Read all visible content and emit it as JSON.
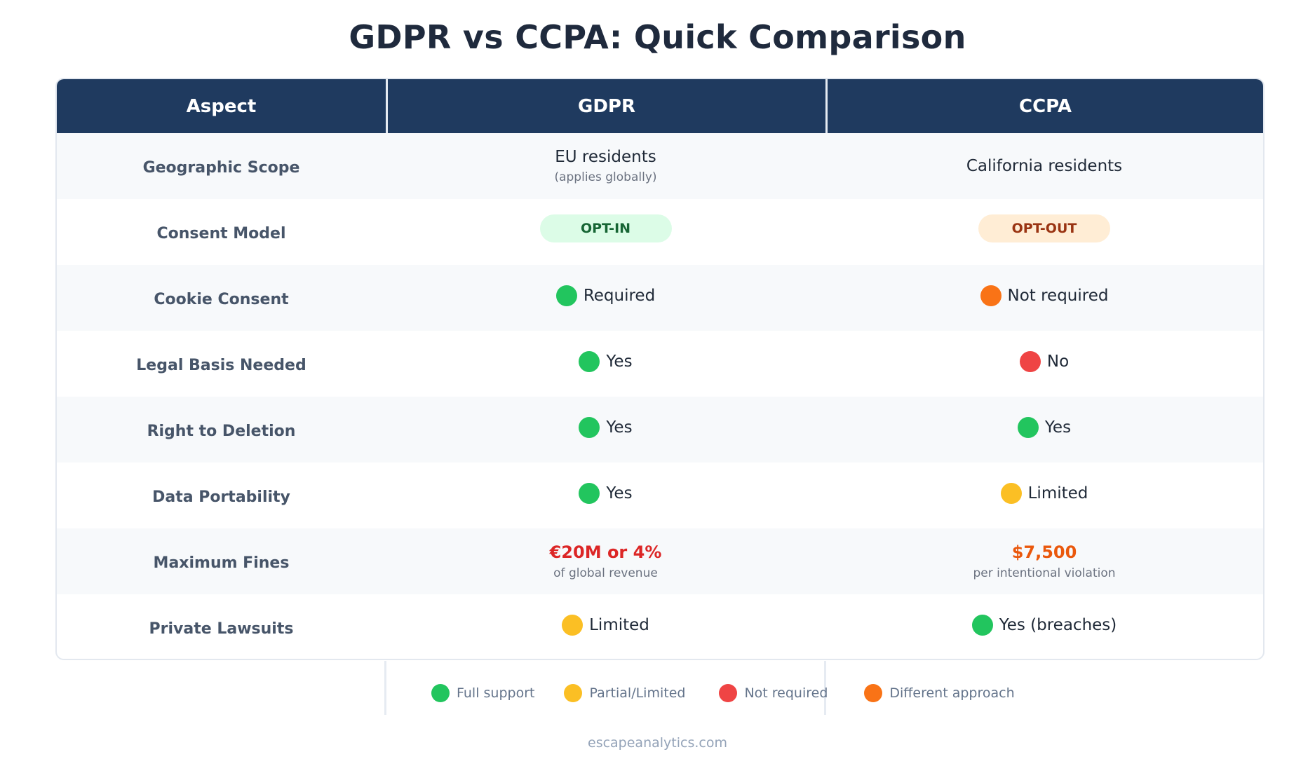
{
  "title": "GDPR vs CCPA: Quick Comparison",
  "colors": {
    "header_bg": "#1f3a5f",
    "green": "#22c55e",
    "yellow": "#fbbf24",
    "red": "#ef4444",
    "orange": "#f97316"
  },
  "headers": [
    "Aspect",
    "GDPR",
    "CCPA"
  ],
  "rows": [
    {
      "aspect": "Geographic Scope",
      "gdpr": {
        "text": "EU residents",
        "sub": "(applies globally)"
      },
      "ccpa": {
        "text": "California residents"
      }
    },
    {
      "aspect": "Consent Model",
      "gdpr": {
        "badge": "OPT-IN"
      },
      "ccpa": {
        "badge": "OPT-OUT"
      }
    },
    {
      "aspect": "Cookie Consent",
      "gdpr": {
        "status": "green",
        "text": "Required"
      },
      "ccpa": {
        "status": "orange",
        "text": "Not required"
      }
    },
    {
      "aspect": "Legal Basis Needed",
      "gdpr": {
        "status": "green",
        "text": "Yes"
      },
      "ccpa": {
        "status": "red",
        "text": "No"
      }
    },
    {
      "aspect": "Right to Deletion",
      "gdpr": {
        "status": "green",
        "text": "Yes"
      },
      "ccpa": {
        "status": "green",
        "text": "Yes"
      }
    },
    {
      "aspect": "Data Portability",
      "gdpr": {
        "status": "green",
        "text": "Yes"
      },
      "ccpa": {
        "status": "yellow",
        "text": "Limited"
      }
    },
    {
      "aspect": "Maximum Fines",
      "gdpr": {
        "fine": "€20M or 4%",
        "sub": "of global revenue"
      },
      "ccpa": {
        "fine": "$7,500",
        "sub": "per intentional violation"
      }
    },
    {
      "aspect": "Private Lawsuits",
      "gdpr": {
        "status": "yellow",
        "text": "Limited"
      },
      "ccpa": {
        "status": "green",
        "text": "Yes (breaches)"
      }
    }
  ],
  "legend": [
    {
      "status": "green",
      "label": "Full support"
    },
    {
      "status": "yellow",
      "label": "Partial/Limited"
    },
    {
      "status": "red",
      "label": "Not required"
    },
    {
      "status": "orange",
      "label": "Different approach"
    }
  ],
  "footer": "escapeanalytics.com"
}
